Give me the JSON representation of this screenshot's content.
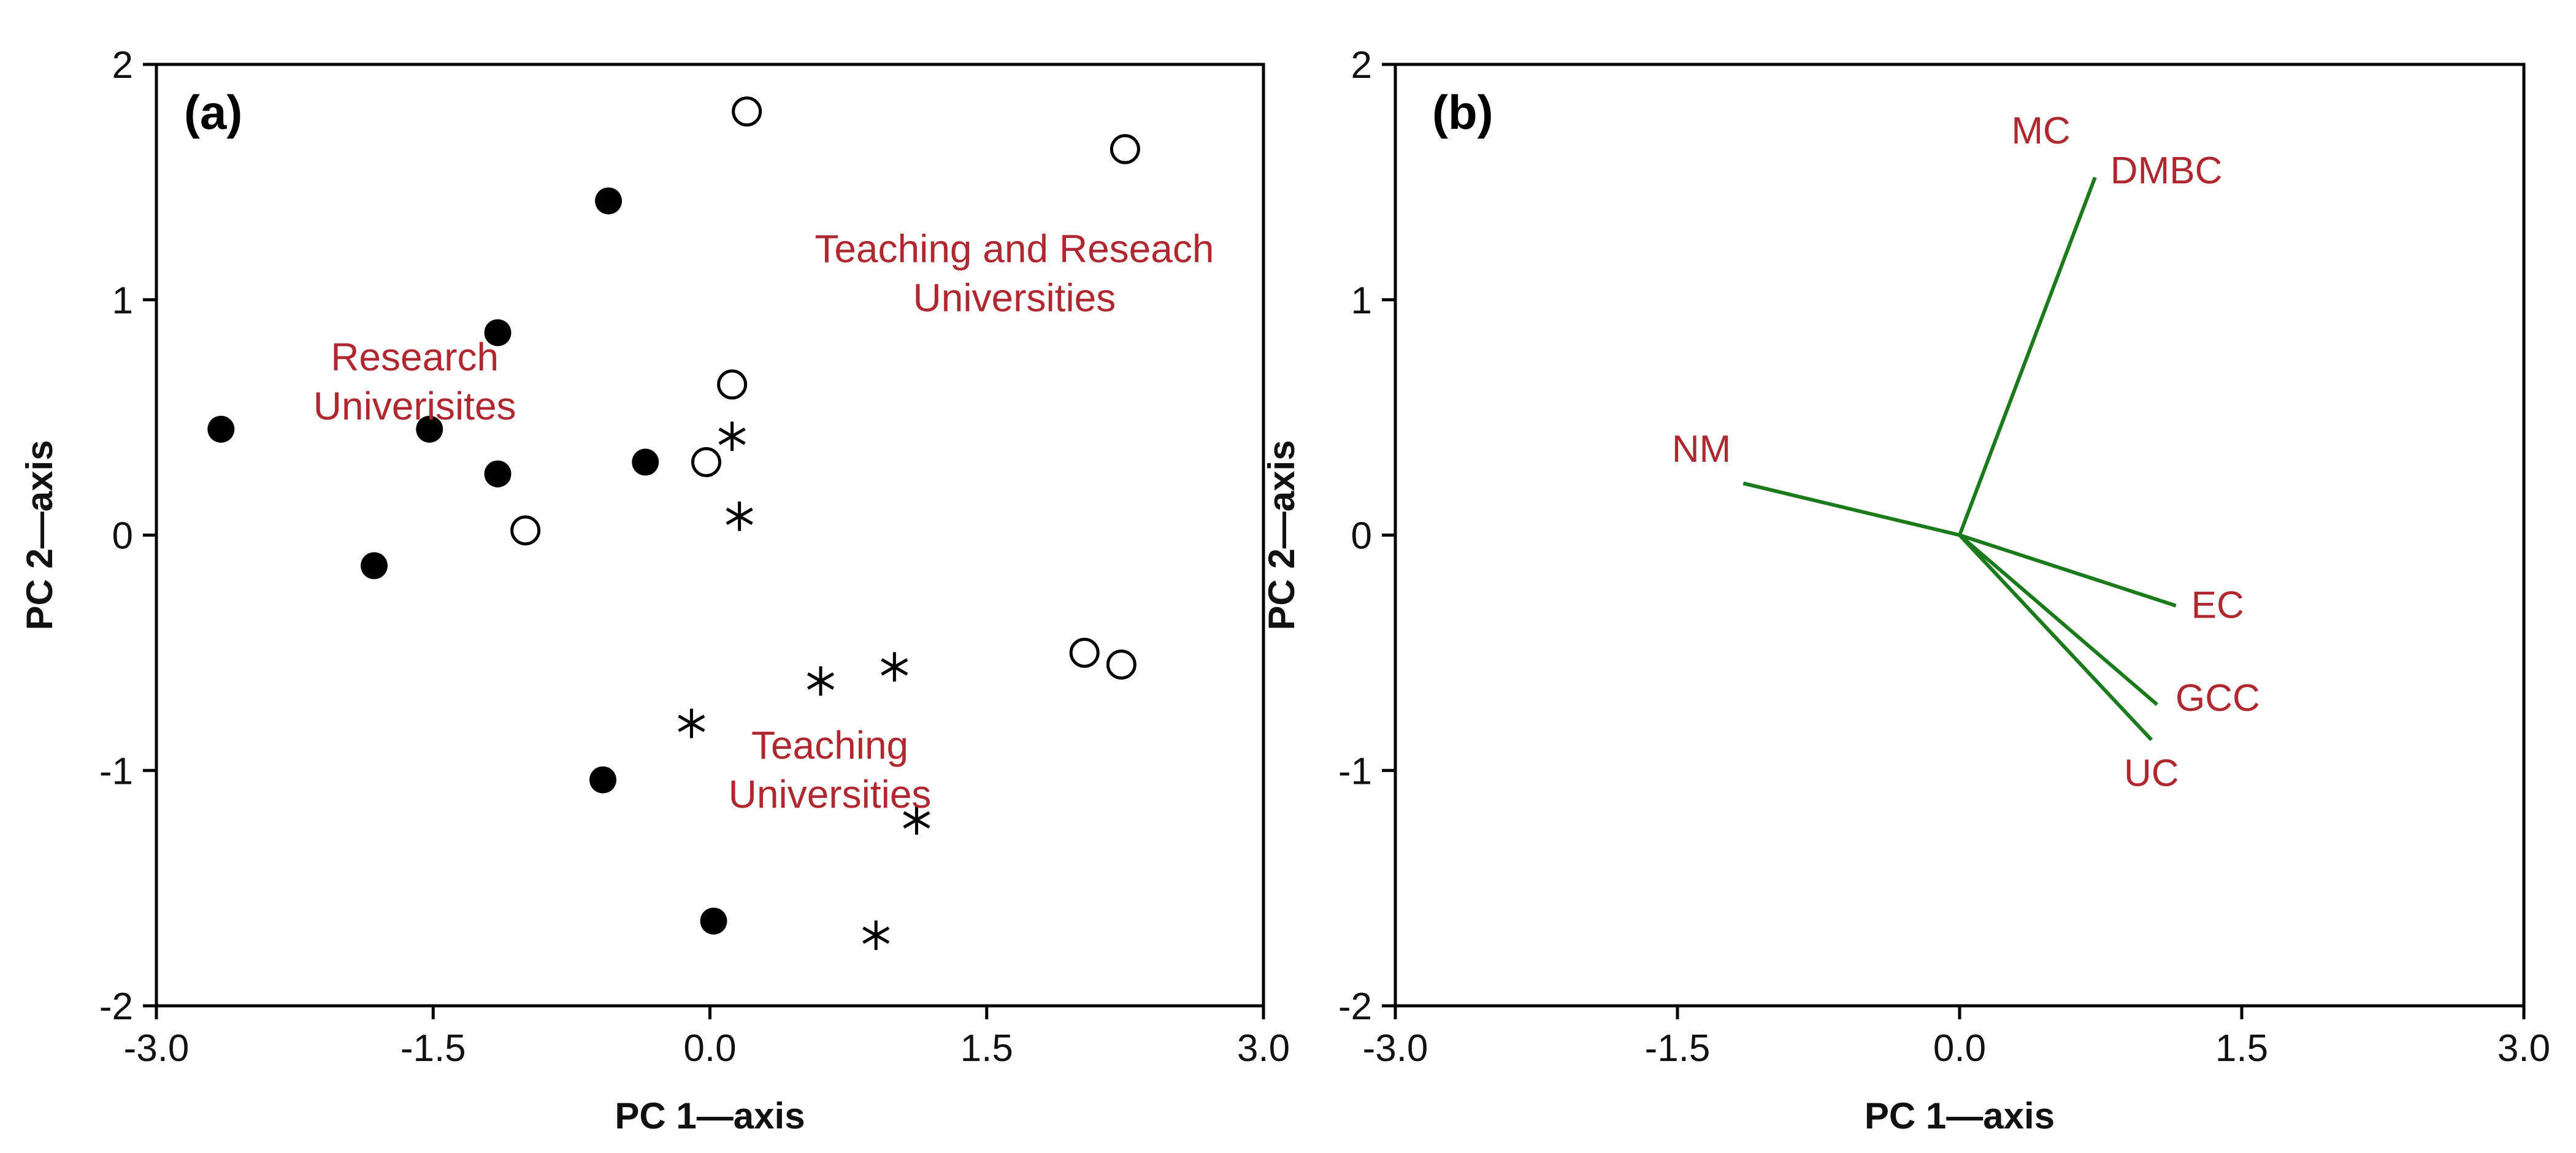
{
  "chart_data": [
    {
      "type": "scatter",
      "panel_label": "(a)",
      "xlabel": "PC 1—axis",
      "ylabel": "PC 2—axis",
      "xlim": [
        -3.0,
        3.0
      ],
      "ylim": [
        -2,
        2
      ],
      "xticks": [
        "-3.0",
        "-1.5",
        "0.0",
        "1.5",
        "3.0"
      ],
      "yticks": [
        "2",
        "1",
        "0",
        "-1",
        "-2"
      ],
      "grid": false,
      "series": [
        {
          "marker": "filled-circle",
          "points": [
            {
              "x": -0.55,
              "y": 1.42
            },
            {
              "x": -1.15,
              "y": 0.86
            },
            {
              "x": -2.65,
              "y": 0.45
            },
            {
              "x": -1.52,
              "y": 0.45
            },
            {
              "x": -1.15,
              "y": 0.26
            },
            {
              "x": -0.35,
              "y": 0.31
            },
            {
              "x": -1.82,
              "y": -0.13
            },
            {
              "x": -0.58,
              "y": -1.04
            },
            {
              "x": 0.02,
              "y": -1.64
            }
          ]
        },
        {
          "marker": "open-circle",
          "points": [
            {
              "x": 0.2,
              "y": 1.8
            },
            {
              "x": 2.25,
              "y": 1.64
            },
            {
              "x": 0.12,
              "y": 0.64
            },
            {
              "x": -0.02,
              "y": 0.31
            },
            {
              "x": -1.0,
              "y": 0.02
            },
            {
              "x": 2.03,
              "y": -0.5
            },
            {
              "x": 2.23,
              "y": -0.55
            }
          ]
        },
        {
          "marker": "asterisk",
          "points": [
            {
              "x": 0.12,
              "y": 0.42
            },
            {
              "x": 0.16,
              "y": 0.08
            },
            {
              "x": 0.6,
              "y": -0.62
            },
            {
              "x": 1.0,
              "y": -0.56
            },
            {
              "x": -0.1,
              "y": -0.8
            },
            {
              "x": 1.12,
              "y": -1.21
            },
            {
              "x": 0.9,
              "y": -1.7
            }
          ]
        }
      ],
      "annotations": [
        {
          "lines": [
            "Teaching and Reseach",
            "Universities"
          ],
          "x": 1.65,
          "y": 1.16
        },
        {
          "lines": [
            "Research",
            "Univerisites"
          ],
          "x": -1.6,
          "y": 0.7
        },
        {
          "lines": [
            "Teaching",
            "Universities"
          ],
          "x": 0.65,
          "y": -0.95
        }
      ]
    },
    {
      "type": "line",
      "panel_label": "(b)",
      "xlabel": "PC 1—axis",
      "ylabel": "PC 2—axis",
      "xlim": [
        -3.0,
        3.0
      ],
      "ylim": [
        -2,
        2
      ],
      "xticks": [
        "-3.0",
        "-1.5",
        "0.0",
        "1.5",
        "3.0"
      ],
      "yticks": [
        "2",
        "1",
        "0",
        "-1",
        "-2"
      ],
      "grid": false,
      "vectors": [
        {
          "name": "MC",
          "x": 0.72,
          "y": 1.52
        },
        {
          "name": "DMBC",
          "x": 0.72,
          "y": 1.52
        },
        {
          "name": "NM",
          "x": -1.15,
          "y": 0.22
        },
        {
          "name": "EC",
          "x": 1.15,
          "y": -0.3
        },
        {
          "name": "GCC",
          "x": 1.05,
          "y": -0.72
        },
        {
          "name": "UC",
          "x": 1.02,
          "y": -0.87
        }
      ],
      "vector_color": "#1b7a1b",
      "label_color": "#b0282f"
    }
  ]
}
